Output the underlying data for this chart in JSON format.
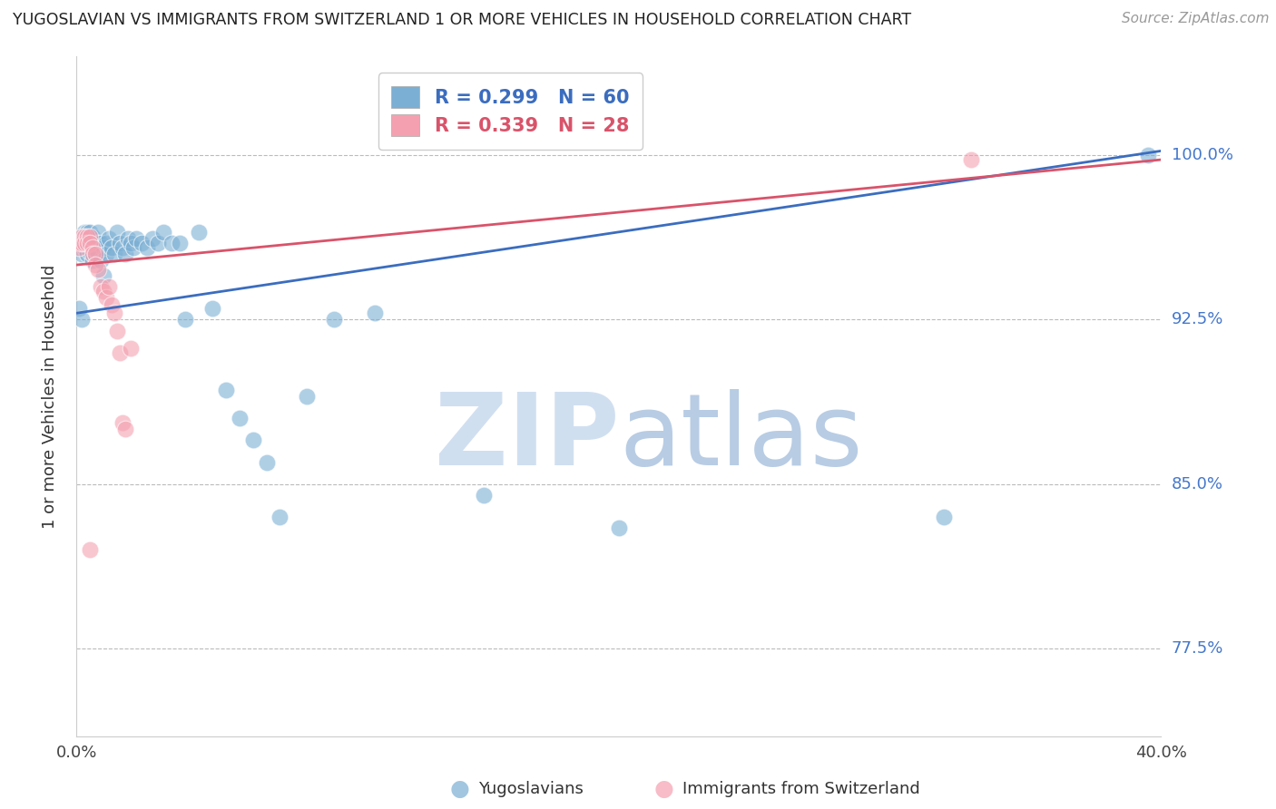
{
  "title": "YUGOSLAVIAN VS IMMIGRANTS FROM SWITZERLAND 1 OR MORE VEHICLES IN HOUSEHOLD CORRELATION CHART",
  "source": "Source: ZipAtlas.com",
  "ylabel": "1 or more Vehicles in Household",
  "ytick_labels": [
    "77.5%",
    "85.0%",
    "92.5%",
    "100.0%"
  ],
  "ytick_values": [
    0.775,
    0.85,
    0.925,
    1.0
  ],
  "xmin": 0.0,
  "xmax": 0.4,
  "ymin": 0.735,
  "ymax": 1.045,
  "blue_R": 0.299,
  "blue_N": 60,
  "pink_R": 0.339,
  "pink_N": 28,
  "legend_label_blue": "Yugoslavians",
  "legend_label_pink": "Immigrants from Switzerland",
  "blue_color": "#7BAFD4",
  "pink_color": "#F4A0B0",
  "blue_line_color": "#3B6DBF",
  "pink_line_color": "#D9536A",
  "blue_scatter_x": [
    0.001,
    0.001,
    0.002,
    0.002,
    0.003,
    0.003,
    0.003,
    0.004,
    0.004,
    0.004,
    0.005,
    0.005,
    0.005,
    0.006,
    0.006,
    0.006,
    0.007,
    0.007,
    0.008,
    0.008,
    0.008,
    0.009,
    0.009,
    0.01,
    0.01,
    0.011,
    0.011,
    0.012,
    0.013,
    0.014,
    0.015,
    0.016,
    0.017,
    0.018,
    0.019,
    0.02,
    0.021,
    0.022,
    0.024,
    0.026,
    0.028,
    0.03,
    0.032,
    0.035,
    0.038,
    0.04,
    0.045,
    0.05,
    0.055,
    0.06,
    0.065,
    0.07,
    0.075,
    0.085,
    0.095,
    0.11,
    0.15,
    0.2,
    0.32,
    0.395
  ],
  "blue_scatter_y": [
    0.93,
    0.96,
    0.955,
    0.925,
    0.965,
    0.96,
    0.958,
    0.965,
    0.96,
    0.955,
    0.965,
    0.96,
    0.956,
    0.963,
    0.958,
    0.952,
    0.96,
    0.955,
    0.965,
    0.96,
    0.955,
    0.96,
    0.952,
    0.958,
    0.945,
    0.96,
    0.955,
    0.962,
    0.958,
    0.955,
    0.965,
    0.96,
    0.958,
    0.955,
    0.962,
    0.96,
    0.958,
    0.962,
    0.96,
    0.958,
    0.962,
    0.96,
    0.965,
    0.96,
    0.96,
    0.925,
    0.965,
    0.93,
    0.893,
    0.88,
    0.87,
    0.86,
    0.835,
    0.89,
    0.925,
    0.928,
    0.845,
    0.83,
    0.835,
    1.0
  ],
  "pink_scatter_x": [
    0.001,
    0.001,
    0.002,
    0.002,
    0.003,
    0.003,
    0.004,
    0.004,
    0.005,
    0.005,
    0.006,
    0.006,
    0.007,
    0.007,
    0.008,
    0.009,
    0.01,
    0.011,
    0.012,
    0.013,
    0.014,
    0.015,
    0.016,
    0.017,
    0.018,
    0.02,
    0.33,
    0.005
  ],
  "pink_scatter_y": [
    0.96,
    0.958,
    0.963,
    0.96,
    0.963,
    0.96,
    0.963,
    0.96,
    0.963,
    0.96,
    0.958,
    0.955,
    0.955,
    0.95,
    0.948,
    0.94,
    0.938,
    0.935,
    0.94,
    0.932,
    0.928,
    0.92,
    0.91,
    0.878,
    0.875,
    0.912,
    0.998,
    0.82
  ],
  "watermark_zip_color": "#D0DFF0",
  "watermark_atlas_color": "#B8CCE4"
}
